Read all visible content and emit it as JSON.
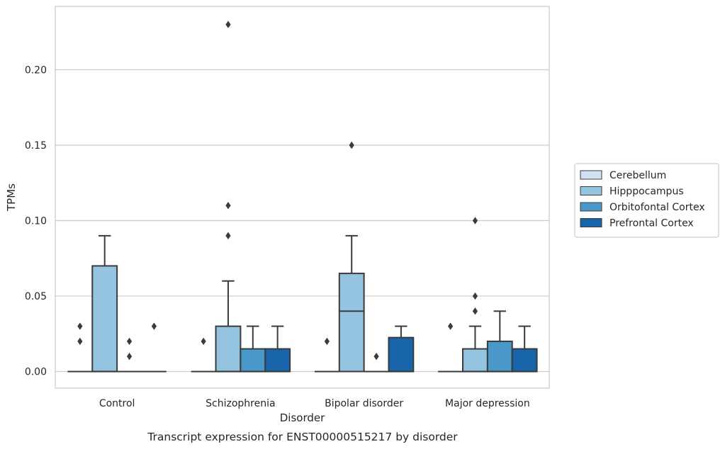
{
  "chart_data": {
    "type": "box",
    "title": "",
    "caption": "Transcript expression for ENST00000515217 by disorder",
    "xlabel": "Disorder",
    "ylabel": "TPMs",
    "ylim": [
      -0.011,
      0.242
    ],
    "yticks": [
      "0.00",
      "0.05",
      "0.10",
      "0.15",
      "0.20"
    ],
    "ytick_values": [
      0.0,
      0.05,
      0.1,
      0.15,
      0.2
    ],
    "grid": "horizontal",
    "legend_position": "right",
    "categories": [
      "Control",
      "Schizophrenia",
      "Bipolar disorder",
      "Major depression"
    ],
    "series": [
      {
        "name": "Cerebellum",
        "color": "#d0e1f2",
        "boxes": [
          {
            "min": 0,
            "q1": 0,
            "median": 0,
            "q3": 0,
            "max": 0,
            "outliers": [
              0.02,
              0.03
            ]
          },
          {
            "min": 0,
            "q1": 0,
            "median": 0,
            "q3": 0,
            "max": 0,
            "outliers": [
              0.02
            ]
          },
          {
            "min": 0,
            "q1": 0,
            "median": 0,
            "q3": 0,
            "max": 0,
            "outliers": [
              0.02
            ]
          },
          {
            "min": 0,
            "q1": 0,
            "median": 0,
            "q3": 0,
            "max": 0,
            "outliers": [
              0.03
            ]
          }
        ]
      },
      {
        "name": "Hipppocampus",
        "color": "#94c4df",
        "boxes": [
          {
            "min": 0,
            "q1": 0,
            "median": 0,
            "q3": 0.07,
            "max": 0.09,
            "outliers": []
          },
          {
            "min": 0,
            "q1": 0,
            "median": 0,
            "q3": 0.03,
            "max": 0.06,
            "outliers": [
              0.09,
              0.11,
              0.23
            ]
          },
          {
            "min": 0,
            "q1": 0,
            "median": 0.04,
            "q3": 0.065,
            "max": 0.09,
            "outliers": [
              0.15
            ]
          },
          {
            "min": 0,
            "q1": 0,
            "median": 0,
            "q3": 0.015,
            "max": 0.03,
            "outliers": [
              0.04,
              0.05,
              0.1
            ]
          }
        ]
      },
      {
        "name": "Orbitofontal Cortex",
        "color": "#4a98c9",
        "boxes": [
          {
            "min": 0,
            "q1": 0,
            "median": 0,
            "q3": 0,
            "max": 0,
            "outliers": [
              0.01,
              0.02
            ]
          },
          {
            "min": 0,
            "q1": 0,
            "median": 0,
            "q3": 0.015,
            "max": 0.03,
            "outliers": []
          },
          {
            "min": 0,
            "q1": 0,
            "median": 0,
            "q3": 0,
            "max": 0,
            "outliers": [
              0.01
            ]
          },
          {
            "min": 0,
            "q1": 0,
            "median": 0,
            "q3": 0.02,
            "max": 0.04,
            "outliers": []
          }
        ]
      },
      {
        "name": "Prefrontal Cortex",
        "color": "#1764ab",
        "boxes": [
          {
            "min": 0,
            "q1": 0,
            "median": 0,
            "q3": 0,
            "max": 0,
            "outliers": [
              0.03
            ]
          },
          {
            "min": 0,
            "q1": 0,
            "median": 0,
            "q3": 0.015,
            "max": 0.03,
            "outliers": []
          },
          {
            "min": 0,
            "q1": 0,
            "median": 0,
            "q3": 0.0225,
            "max": 0.03,
            "outliers": []
          },
          {
            "min": 0,
            "q1": 0,
            "median": 0,
            "q3": 0.015,
            "max": 0.03,
            "outliers": []
          }
        ]
      }
    ]
  }
}
